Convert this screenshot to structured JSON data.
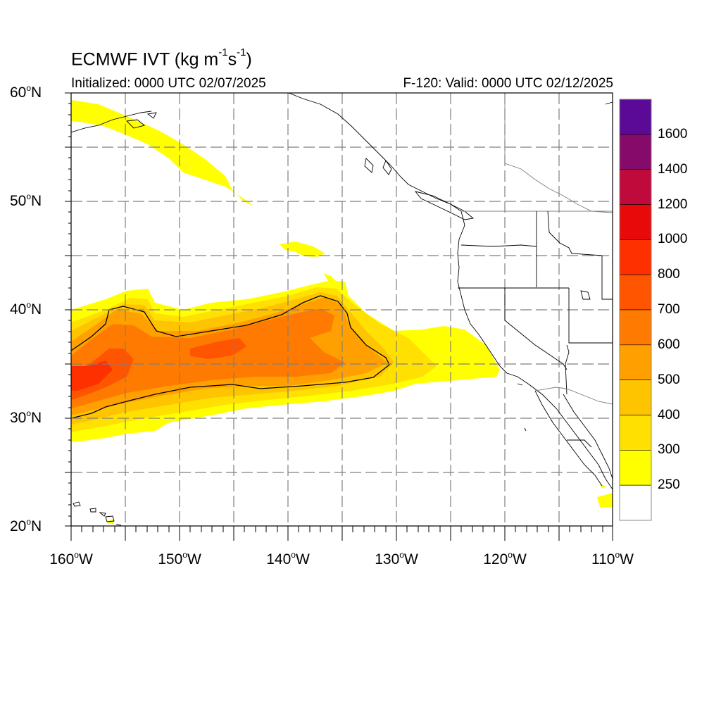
{
  "header": {
    "title": "ECMWF IVT (kg m",
    "title_sup1": "-1",
    "title_mid": "s",
    "title_sup2": "-1",
    "title_end": ")",
    "initialized": "Initialized: 0000 UTC 02/07/2025",
    "valid": "F-120: Valid: 0000 UTC 02/12/2025"
  },
  "axes": {
    "lat_labels": [
      {
        "value": "60",
        "suffix": "N"
      },
      {
        "value": "50",
        "suffix": "N"
      },
      {
        "value": "40",
        "suffix": "N"
      },
      {
        "value": "30",
        "suffix": "N"
      },
      {
        "value": "20",
        "suffix": "N"
      }
    ],
    "lon_labels": [
      {
        "value": "160",
        "suffix": "W"
      },
      {
        "value": "150",
        "suffix": "W"
      },
      {
        "value": "140",
        "suffix": "W"
      },
      {
        "value": "130",
        "suffix": "W"
      },
      {
        "value": "120",
        "suffix": "W"
      },
      {
        "value": "110",
        "suffix": "W"
      }
    ],
    "degree_symbol": "o",
    "lat_range": [
      20,
      60
    ],
    "lon_range": [
      -160,
      -110
    ],
    "grid": "dashed every 5 degrees"
  },
  "colorbar": {
    "labels": [
      "1600",
      "1400",
      "1200",
      "1000",
      "800",
      "700",
      "600",
      "500",
      "400",
      "300",
      "250"
    ],
    "colors_top_to_bottom": [
      "#5a0a96",
      "#850a6a",
      "#c00a3c",
      "#e80a0a",
      "#ff3000",
      "#ff5500",
      "#ff7a00",
      "#ffa000",
      "#ffc400",
      "#ffe000",
      "#ffff00",
      "#ffffff"
    ]
  },
  "chart_data": {
    "type": "heatmap",
    "title": "ECMWF IVT (kg m-1s-1)",
    "xlabel": "",
    "ylabel": "",
    "xlim": [
      -160,
      -110
    ],
    "ylim": [
      20,
      60
    ],
    "levels": [
      250,
      300,
      400,
      500,
      600,
      700,
      800,
      1000,
      1200,
      1400,
      1600
    ],
    "features": [
      {
        "name": "atmospheric river core",
        "approx_max_level": 700
      },
      {
        "name": "500 contour outline",
        "level": 500
      }
    ]
  }
}
